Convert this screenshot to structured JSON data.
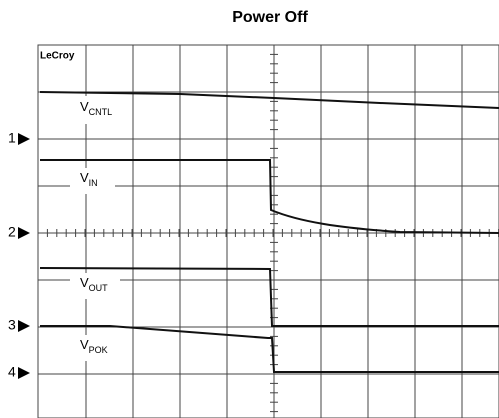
{
  "title": "Power Off",
  "brand": "LeCroy",
  "channels": [
    {
      "marker": "1",
      "label": "V",
      "subscript": "CNTL"
    },
    {
      "marker": "2",
      "label": "V",
      "subscript": "IN"
    },
    {
      "marker": "3",
      "label": "V",
      "subscript": "OUT"
    },
    {
      "marker": "4",
      "label": "V",
      "subscript": "POK"
    }
  ]
}
